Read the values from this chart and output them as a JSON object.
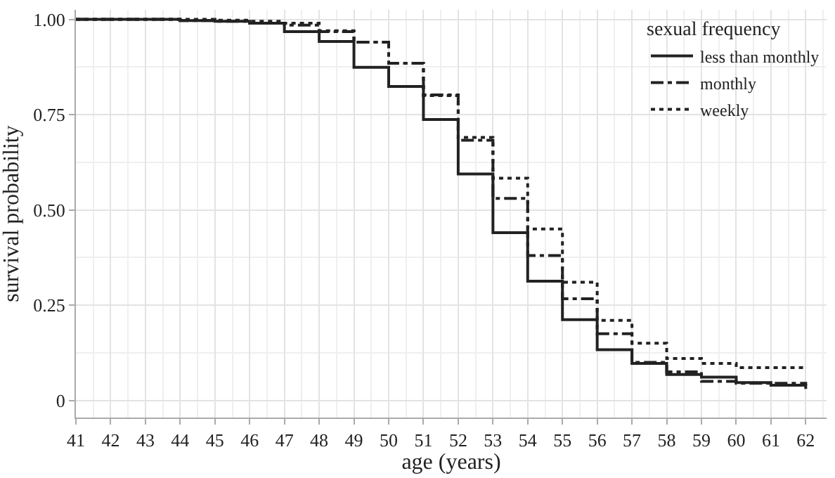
{
  "chart_data": {
    "type": "step",
    "xlabel": "age (years)",
    "ylabel": "survival probability",
    "legend_title": "sexual frequency",
    "x": [
      41,
      42,
      43,
      44,
      45,
      46,
      47,
      48,
      49,
      50,
      51,
      52,
      53,
      54,
      55,
      56,
      57,
      58,
      59,
      60,
      61,
      62
    ],
    "series": [
      {
        "name": "less than monthly",
        "color": "#222222",
        "line_style": "solid",
        "values": [
          1,
          1,
          1,
          0.997,
          0.995,
          0.99,
          0.968,
          0.942,
          0.874,
          0.824,
          0.737,
          0.594,
          0.44,
          0.313,
          0.212,
          0.133,
          0.097,
          0.068,
          0.061,
          0.047,
          0.04,
          0.03
        ]
      },
      {
        "name": "monthly",
        "color": "#222222",
        "line_style": "dashed",
        "values": [
          1,
          1,
          1,
          0.997,
          0.995,
          0.99,
          0.985,
          0.968,
          0.94,
          0.885,
          0.802,
          0.683,
          0.53,
          0.38,
          0.267,
          0.175,
          0.1,
          0.075,
          0.05,
          0.045,
          0.045,
          0.04
        ]
      },
      {
        "name": "weekly",
        "color": "#222222",
        "line_style": "dotted",
        "values": [
          1,
          1,
          1,
          1,
          0.998,
          0.995,
          0.99,
          0.97,
          0.94,
          0.885,
          0.8,
          0.69,
          0.583,
          0.45,
          0.31,
          0.21,
          0.15,
          0.11,
          0.097,
          0.086,
          0.086,
          0.086
        ]
      }
    ],
    "xlim": [
      41,
      62.6
    ],
    "xticks": [
      41,
      42,
      43,
      44,
      45,
      46,
      47,
      48,
      49,
      50,
      51,
      52,
      53,
      54,
      55,
      56,
      57,
      58,
      59,
      60,
      61,
      62
    ],
    "ylim": [
      -0.045,
      1.025
    ],
    "yticks": [
      {
        "value": 1,
        "label": "1.00"
      },
      {
        "value": 0.75,
        "label": "0.75"
      },
      {
        "value": 0.5,
        "label": "0.50"
      },
      {
        "value": 0.25,
        "label": "0.25"
      },
      0
    ],
    "grid": true,
    "legend": "top right"
  }
}
